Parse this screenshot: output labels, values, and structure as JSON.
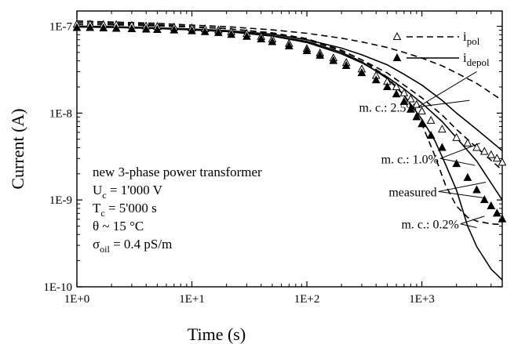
{
  "chart_data": {
    "type": "scatter",
    "title": "",
    "xlabel": "Time (s)",
    "ylabel": "Current (A)",
    "x_scale": "log",
    "y_scale": "log",
    "xlim": [
      1,
      5000
    ],
    "ylim": [
      1e-10,
      1.5e-07
    ],
    "x_ticks": [
      1,
      10,
      100,
      1000
    ],
    "x_tick_labels": [
      "1E+0",
      "1E+1",
      "1E+2",
      "1E+3"
    ],
    "y_ticks": [
      1e-10,
      1e-09,
      1e-08,
      1e-07
    ],
    "y_tick_labels": [
      "1E-10",
      "1E-9",
      "1E-8",
      "1E-7"
    ],
    "legend": {
      "placement": "top-right",
      "entries": [
        {
          "marker": "open-triangle",
          "line": "dashed",
          "label_main": "i",
          "label_sub": "pol"
        },
        {
          "marker": "filled-triangle",
          "line": "solid",
          "label_main": "i",
          "label_sub": "depol"
        }
      ]
    },
    "series": [
      {
        "name": "i_pol",
        "kind": "measured",
        "marker": "open-triangle",
        "x": [
          1,
          1.3,
          1.7,
          2.2,
          3,
          4,
          5,
          7,
          10,
          13,
          17,
          22,
          30,
          40,
          50,
          70,
          100,
          130,
          170,
          220,
          300,
          400,
          500,
          600,
          700,
          800,
          900,
          1000,
          1200,
          1500,
          2000,
          2500,
          3000,
          3500,
          4000,
          4500,
          5000
        ],
        "y": [
          1.05e-07,
          1.05e-07,
          1.04e-07,
          1.04e-07,
          1.02e-07,
          1e-07,
          9.9e-08,
          9.7e-08,
          9.5e-08,
          9.3e-08,
          9e-08,
          8.6e-08,
          8.2e-08,
          7.6e-08,
          7.1e-08,
          6.3e-08,
          5.5e-08,
          4.9e-08,
          4.3e-08,
          3.8e-08,
          3.2e-08,
          2.7e-08,
          2.3e-08,
          2e-08,
          1.7e-08,
          1.45e-08,
          1.25e-08,
          1.05e-08,
          8.2e-09,
          6.5e-09,
          5.2e-09,
          4.5e-09,
          4e-09,
          3.6e-09,
          3.3e-09,
          3e-09,
          2.7e-09
        ]
      },
      {
        "name": "i_depol",
        "kind": "measured",
        "marker": "filled-triangle",
        "x": [
          1,
          1.3,
          1.7,
          2.2,
          3,
          4,
          5,
          7,
          10,
          13,
          17,
          22,
          30,
          40,
          50,
          70,
          100,
          130,
          170,
          220,
          300,
          400,
          500,
          600,
          700,
          800,
          900,
          1000,
          1200,
          1500,
          2000,
          2500,
          3000,
          3500,
          4000,
          4500,
          5000
        ],
        "y": [
          9.6e-08,
          9.6e-08,
          9.5e-08,
          9.4e-08,
          9.3e-08,
          9.2e-08,
          9.1e-08,
          9e-08,
          8.8e-08,
          8.6e-08,
          8.4e-08,
          8e-08,
          7.6e-08,
          7.1e-08,
          6.6e-08,
          5.9e-08,
          5.2e-08,
          4.6e-08,
          4e-08,
          3.5e-08,
          2.9e-08,
          2.4e-08,
          2e-08,
          1.65e-08,
          1.35e-08,
          1.1e-08,
          9e-09,
          7.5e-09,
          5.5e-09,
          4e-09,
          2.6e-09,
          1.8e-09,
          1.3e-09,
          1e-09,
          8.5e-10,
          7e-10,
          6e-10
        ]
      },
      {
        "name": "i_pol m.c. 2.5%",
        "kind": "model",
        "line": "dashed",
        "x": [
          1,
          2,
          5,
          10,
          20,
          50,
          100,
          200,
          300,
          500,
          700,
          1000,
          1500,
          2000,
          3000,
          5000
        ],
        "y": [
          1.15e-07,
          1.12e-07,
          1.08e-07,
          1.03e-07,
          9.9e-08,
          9.1e-08,
          8.3e-08,
          7.3e-08,
          6.6e-08,
          5.7e-08,
          5e-08,
          4.3e-08,
          3.5e-08,
          2.9e-08,
          2.2e-08,
          1.4e-08
        ]
      },
      {
        "name": "i_depol m.c. 2.5%",
        "kind": "model",
        "line": "solid",
        "x": [
          1,
          2,
          5,
          10,
          20,
          50,
          100,
          200,
          300,
          500,
          700,
          1000,
          1500,
          2000,
          3000,
          5000
        ],
        "y": [
          1e-07,
          9.9e-08,
          9.6e-08,
          9.3e-08,
          8.9e-08,
          8.1e-08,
          7e-08,
          5.6e-08,
          4.7e-08,
          3.6e-08,
          2.8e-08,
          2.1e-08,
          1.4e-08,
          1e-08,
          6.5e-09,
          3.7e-09
        ]
      },
      {
        "name": "i_pol m.c. 1.0%",
        "kind": "model",
        "line": "dashed",
        "x": [
          1,
          2,
          5,
          10,
          20,
          50,
          100,
          200,
          300,
          500,
          700,
          1000,
          1500,
          2000,
          3000,
          5000
        ],
        "y": [
          1.1e-07,
          1.08e-07,
          1.04e-07,
          9.9e-08,
          9.4e-08,
          8.3e-08,
          7e-08,
          5.2e-08,
          4.1e-08,
          2.9e-08,
          2.1e-08,
          1.5e-08,
          9.5e-09,
          6.5e-09,
          4e-09,
          2.2e-09
        ]
      },
      {
        "name": "i_depol m.c. 1.0%",
        "kind": "model",
        "line": "solid",
        "x": [
          1,
          2,
          5,
          10,
          20,
          50,
          100,
          200,
          300,
          500,
          700,
          1000,
          1500,
          2000,
          3000,
          5000
        ],
        "y": [
          1e-07,
          9.9e-08,
          9.5e-08,
          9.1e-08,
          8.7e-08,
          7.7e-08,
          6.5e-08,
          4.8e-08,
          3.8e-08,
          2.6e-08,
          1.9e-08,
          1.3e-08,
          8e-09,
          5.2e-09,
          2.8e-09,
          1e-09
        ]
      },
      {
        "name": "i_pol m.c. 0.2%",
        "kind": "model",
        "line": "dashed",
        "x": [
          1,
          2,
          5,
          10,
          20,
          50,
          100,
          200,
          300,
          500,
          700,
          1000,
          1300,
          1600,
          2000,
          2500,
          3000,
          4000,
          5000
        ],
        "y": [
          1.05e-07,
          1.04e-07,
          1.01e-07,
          9.8e-08,
          9.4e-08,
          8.4e-08,
          7.2e-08,
          5.3e-08,
          4.1e-08,
          2.6e-08,
          1.6e-08,
          7.5e-09,
          3.2e-09,
          1.5e-09,
          8.5e-10,
          6.3e-10,
          5.7e-10,
          5.3e-10,
          5.2e-10
        ]
      },
      {
        "name": "i_depol m.c. 0.2%",
        "kind": "model",
        "line": "solid",
        "x": [
          1,
          2,
          5,
          10,
          20,
          50,
          100,
          200,
          300,
          500,
          700,
          1000,
          1300,
          1600,
          2000,
          2500,
          3000,
          4000,
          5000
        ],
        "y": [
          9.8e-08,
          9.7e-08,
          9.4e-08,
          9.1e-08,
          8.7e-08,
          7.8e-08,
          6.7e-08,
          5e-08,
          3.9e-08,
          2.5e-08,
          1.6e-08,
          8.5e-09,
          4.8e-09,
          2.6e-09,
          1.3e-09,
          5e-10,
          2.9e-10,
          1.6e-10,
          1.2e-10
        ]
      }
    ],
    "annotations": [
      {
        "id": "mc25",
        "text": "m. c.: 2.5%",
        "anchor": [
          900,
          1.18e-08
        ],
        "targets": [
          [
            3000,
            3e-08
          ],
          [
            2600,
            1.4e-08
          ]
        ]
      },
      {
        "id": "mc10",
        "text": "m. c.: 1.0%",
        "anchor": [
          1400,
          3e-09
        ],
        "targets": [
          [
            3200,
            4.5e-09
          ],
          [
            2900,
            2.5e-09
          ]
        ]
      },
      {
        "id": "meas",
        "text": "measured",
        "anchor": [
          1350,
          1.25e-09
        ],
        "targets": [
          [
            3600,
            1.6e-09
          ],
          [
            3600,
            1.05e-09
          ]
        ]
      },
      {
        "id": "mc02",
        "text": "m. c.: 0.2%",
        "anchor": [
          2100,
          5.3e-10
        ],
        "targets": [
          [
            3500,
            6.5e-10
          ],
          [
            3000,
            4.8e-10
          ]
        ]
      }
    ],
    "info_box": [
      {
        "main": "new 3-phase power transformer",
        "sub": "",
        "rest": ""
      },
      {
        "main": "U",
        "sub": "c",
        "rest": " = 1'000 V"
      },
      {
        "main": "T",
        "sub": "c",
        "rest": " = 5'000 s"
      },
      {
        "main": "θ ~ 15 °C",
        "sub": "",
        "rest": ""
      },
      {
        "main": "σ",
        "sub": "oil",
        "rest": " = 0.4 pS/m"
      }
    ]
  }
}
